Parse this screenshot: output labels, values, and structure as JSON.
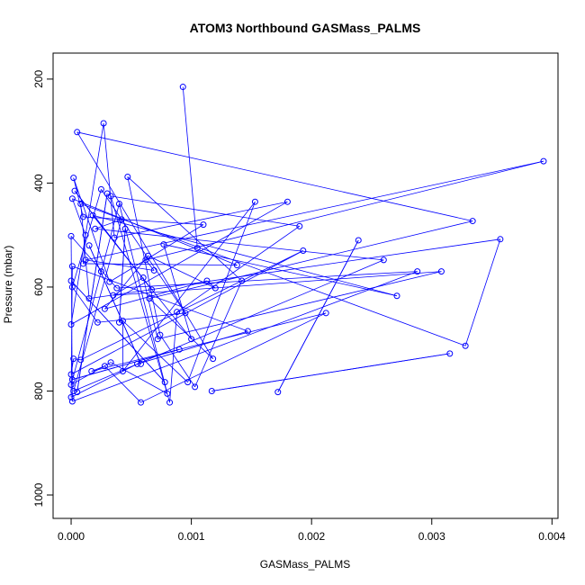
{
  "chart_data": {
    "type": "scatter",
    "title": "ATOM3 Northbound GASMass_PALMS",
    "xlabel": "GASMass_PALMS",
    "ylabel": "Pressure (mbar)",
    "xlim": [
      -0.00015,
      0.00405
    ],
    "ylim": [
      1045,
      150
    ],
    "y_reversed": true,
    "xticks": [
      0.0,
      0.001,
      0.002,
      0.003,
      0.004
    ],
    "xtick_labels": [
      "0.000",
      "0.001",
      "0.002",
      "0.003",
      "0.004"
    ],
    "yticks": [
      200,
      400,
      600,
      800,
      1000
    ],
    "ytick_labels": [
      "200",
      "400",
      "600",
      "800",
      "1000"
    ],
    "series_color": "#0000ff",
    "grid": false,
    "legend": "none",
    "points": [
      [
        1e-05,
        820
      ],
      [
        0.0,
        812
      ],
      [
        2e-05,
        800
      ],
      [
        0.0,
        788
      ],
      [
        1e-05,
        778
      ],
      [
        0.0,
        768
      ],
      [
        2e-05,
        738
      ],
      [
        0.0,
        672
      ],
      [
        1e-05,
        600
      ],
      [
        0.0,
        588
      ],
      [
        1e-05,
        560
      ],
      [
        0.0,
        502
      ],
      [
        1e-05,
        430
      ],
      [
        2e-05,
        390
      ],
      [
        3e-05,
        415
      ],
      [
        5e-05,
        302
      ],
      [
        8e-05,
        440
      ],
      [
        0.0001,
        465
      ],
      [
        0.00012,
        500
      ],
      [
        0.00015,
        520
      ],
      [
        0.00018,
        462
      ],
      [
        0.0002,
        488
      ],
      [
        0.00025,
        412
      ],
      [
        0.00027,
        285
      ],
      [
        0.0003,
        420
      ],
      [
        0.00033,
        425
      ],
      [
        0.00036,
        505
      ],
      [
        0.0004,
        440
      ],
      [
        0.00042,
        470
      ],
      [
        0.00045,
        488
      ],
      [
        0.00047,
        388
      ],
      [
        0.0001,
        555
      ],
      [
        0.00012,
        548
      ],
      [
        0.00015,
        622
      ],
      [
        0.00025,
        570
      ],
      [
        0.00028,
        642
      ],
      [
        0.00032,
        590
      ],
      [
        0.00035,
        616
      ],
      [
        0.00038,
        602
      ],
      [
        0.0004,
        668
      ],
      [
        0.00043,
        665
      ],
      [
        0.00022,
        668
      ],
      [
        0.00017,
        762
      ],
      [
        8e-05,
        740
      ],
      [
        5e-05,
        802
      ],
      [
        0.00028,
        752
      ],
      [
        0.00033,
        745
      ],
      [
        0.00043,
        762
      ],
      [
        0.00055,
        748
      ],
      [
        0.00058,
        748
      ],
      [
        0.0006,
        582
      ],
      [
        0.00062,
        548
      ],
      [
        0.00064,
        540
      ],
      [
        0.00065,
        622
      ],
      [
        0.00067,
        605
      ],
      [
        0.00069,
        568
      ],
      [
        0.00072,
        700
      ],
      [
        0.00074,
        692
      ],
      [
        0.00077,
        518
      ],
      [
        0.00078,
        783
      ],
      [
        0.0008,
        805
      ],
      [
        0.00058,
        822
      ],
      [
        0.00082,
        822
      ],
      [
        0.00088,
        648
      ],
      [
        0.0009,
        720
      ],
      [
        0.00095,
        650
      ],
      [
        0.00097,
        783
      ],
      [
        0.001,
        700
      ],
      [
        0.00103,
        792
      ],
      [
        0.00105,
        525
      ],
      [
        0.0011,
        480
      ],
      [
        0.00113,
        588
      ],
      [
        0.00118,
        738
      ],
      [
        0.0012,
        602
      ],
      [
        0.00117,
        800
      ],
      [
        0.00138,
        558
      ],
      [
        0.00142,
        588
      ],
      [
        0.00147,
        685
      ],
      [
        0.00153,
        436
      ],
      [
        0.00172,
        802
      ],
      [
        0.0018,
        436
      ],
      [
        0.0019,
        483
      ],
      [
        0.00193,
        530
      ],
      [
        0.00212,
        650
      ],
      [
        0.00239,
        510
      ],
      [
        0.0026,
        548
      ],
      [
        0.00271,
        617
      ],
      [
        0.00288,
        570
      ],
      [
        0.00308,
        570
      ],
      [
        0.00315,
        728
      ],
      [
        0.00328,
        713
      ],
      [
        0.00334,
        473
      ],
      [
        0.00357,
        508
      ],
      [
        0.00393,
        358
      ],
      [
        0.00093,
        215
      ]
    ]
  }
}
